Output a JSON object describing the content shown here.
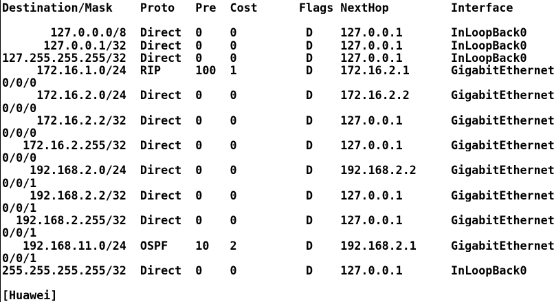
{
  "terminal": {
    "colors": {
      "background": "#ffffff",
      "text": "#000000",
      "border": "#000000"
    },
    "routing_table": {
      "columns": [
        "Destination/Mask",
        "Proto",
        "Pre",
        "Cost",
        "Flags",
        "NextHop",
        "Interface"
      ],
      "routes": [
        {
          "destination": "127.0.0.0/8",
          "proto": "Direct",
          "pre": "0",
          "cost": "0",
          "flags": "D",
          "nexthop": "127.0.0.1",
          "interface": "InLoopBack0"
        },
        {
          "destination": "127.0.0.1/32",
          "proto": "Direct",
          "pre": "0",
          "cost": "0",
          "flags": "D",
          "nexthop": "127.0.0.1",
          "interface": "InLoopBack0"
        },
        {
          "destination": "127.255.255.255/32",
          "proto": "Direct",
          "pre": "0",
          "cost": "0",
          "flags": "D",
          "nexthop": "127.0.0.1",
          "interface": "InLoopBack0"
        },
        {
          "destination": "172.16.1.0/24",
          "proto": "RIP",
          "pre": "100",
          "cost": "1",
          "flags": "D",
          "nexthop": "172.16.2.1",
          "interface": "GigabitEthernet0/0/0"
        },
        {
          "destination": "172.16.2.0/24",
          "proto": "Direct",
          "pre": "0",
          "cost": "0",
          "flags": "D",
          "nexthop": "172.16.2.2",
          "interface": "GigabitEthernet0/0/0"
        },
        {
          "destination": "172.16.2.2/32",
          "proto": "Direct",
          "pre": "0",
          "cost": "0",
          "flags": "D",
          "nexthop": "127.0.0.1",
          "interface": "GigabitEthernet0/0/0"
        },
        {
          "destination": "172.16.2.255/32",
          "proto": "Direct",
          "pre": "0",
          "cost": "0",
          "flags": "D",
          "nexthop": "127.0.0.1",
          "interface": "GigabitEthernet0/0/0"
        },
        {
          "destination": "192.168.2.0/24",
          "proto": "Direct",
          "pre": "0",
          "cost": "0",
          "flags": "D",
          "nexthop": "192.168.2.2",
          "interface": "GigabitEthernet0/0/1"
        },
        {
          "destination": "192.168.2.2/32",
          "proto": "Direct",
          "pre": "0",
          "cost": "0",
          "flags": "D",
          "nexthop": "127.0.0.1",
          "interface": "GigabitEthernet0/0/1"
        },
        {
          "destination": "192.168.2.255/32",
          "proto": "Direct",
          "pre": "0",
          "cost": "0",
          "flags": "D",
          "nexthop": "127.0.0.1",
          "interface": "GigabitEthernet0/0/1"
        },
        {
          "destination": "192.168.11.0/24",
          "proto": "OSPF",
          "pre": "10",
          "cost": "2",
          "flags": "D",
          "nexthop": "192.168.2.1",
          "interface": "GigabitEthernet0/0/1"
        },
        {
          "destination": "255.255.255.255/32",
          "proto": "Direct",
          "pre": "0",
          "cost": "0",
          "flags": "D",
          "nexthop": "127.0.0.1",
          "interface": "InLoopBack0"
        }
      ]
    },
    "prompt": "[Huawei]"
  }
}
